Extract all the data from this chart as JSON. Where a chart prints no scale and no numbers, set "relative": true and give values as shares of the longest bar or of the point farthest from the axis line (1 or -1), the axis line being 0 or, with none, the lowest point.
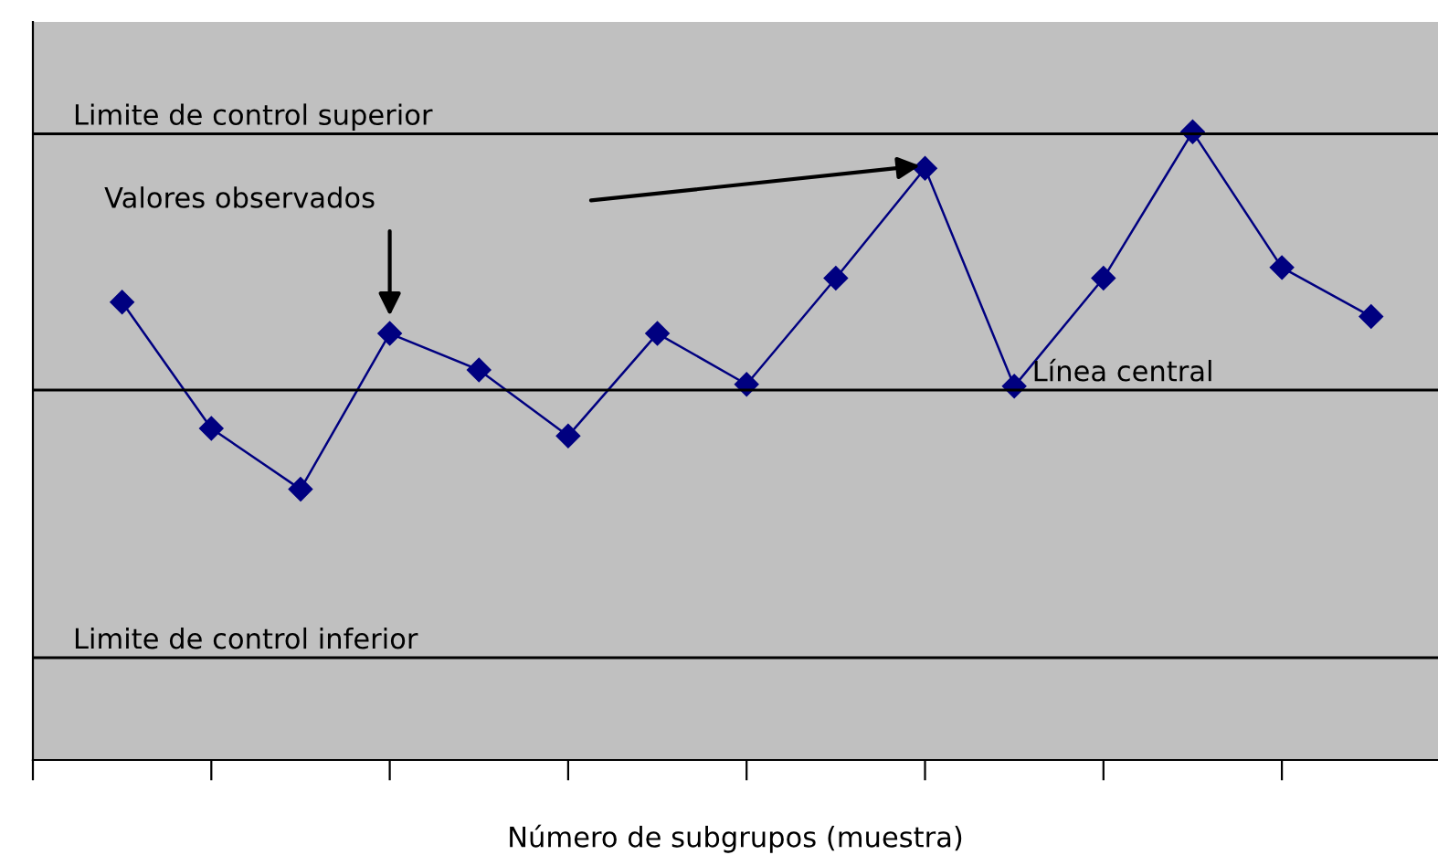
{
  "chart_data": {
    "type": "line",
    "relative": true,
    "xlabel": "Número de subgrupos (muestra)",
    "categories": [
      null,
      null,
      null,
      null,
      null,
      null,
      null,
      null,
      null,
      null,
      null,
      null,
      null,
      null,
      null
    ],
    "series": [
      {
        "color": "#000080",
        "values": [
          0.729,
          0.528,
          0.431,
          0.679,
          0.621,
          0.516,
          0.679,
          0.598,
          0.767,
          0.942,
          0.595,
          0.767,
          1.0,
          0.784,
          0.706
        ]
      }
    ],
    "marker": "diamond",
    "line_style": "solid",
    "grid": false,
    "ref_lines": [
      {
        "axis": "y",
        "value": 0.997,
        "label": "Limite de control superior",
        "color": "#000000"
      },
      {
        "axis": "y",
        "value": 0.589,
        "label": "Línea central",
        "color": "#000000"
      },
      {
        "axis": "y",
        "value": 0.163,
        "label": "Limite de control inferior",
        "color": "#000000"
      }
    ],
    "annotations": [
      "Valores observados"
    ]
  }
}
